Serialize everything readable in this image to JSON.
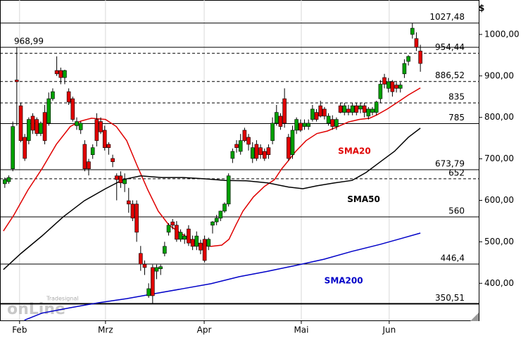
{
  "chart_data": {
    "type": "candlestick",
    "y_unit": "$",
    "xlim": [
      -1.2,
      118.6
    ],
    "xticks": [
      {
        "value": 3.7,
        "label": "Feb"
      },
      {
        "value": 25.2,
        "label": "Mrz"
      },
      {
        "value": 49.9,
        "label": "Apr"
      },
      {
        "value": 74.2,
        "label": "Mai"
      },
      {
        "value": 96.2,
        "label": "Jun"
      }
    ],
    "ylim": [
      310.5,
      1083
    ],
    "yticks": [
      {
        "value": 400,
        "label": "400,00"
      },
      {
        "value": 500,
        "label": "500,00"
      },
      {
        "value": 600,
        "label": "600,00"
      },
      {
        "value": 700,
        "label": "700,00"
      },
      {
        "value": 800,
        "label": "800,00"
      },
      {
        "value": 900,
        "label": "900,00"
      },
      {
        "value": 1000,
        "label": "1000,00"
      }
    ],
    "grid": "x",
    "up_color": "#00a000",
    "down_color": "#e00000",
    "open": [
      640,
      645,
      676,
      890,
      828,
      752,
      744,
      803,
      795,
      761,
      812,
      786,
      845,
      913,
      913,
      896,
      862,
      845,
      780,
      770,
      735,
      693,
      710,
      795,
      790,
      769,
      735,
      701,
      659,
      659,
      640,
      599,
      591,
      591,
      472,
      446,
      370,
      438,
      429,
      435,
      472,
      523,
      548,
      540,
      506,
      506,
      531,
      506,
      489,
      497,
      506,
      489,
      540,
      548,
      557,
      574,
      591,
      701,
      735,
      718,
      769,
      752,
      701,
      735,
      727,
      718,
      727,
      744,
      786,
      803,
      845,
      752,
      710,
      769,
      786,
      778,
      778,
      795,
      812,
      828,
      820,
      786,
      795,
      778,
      828,
      812,
      820,
      812,
      828,
      820,
      828,
      803,
      812,
      812,
      845,
      896,
      870,
      886,
      878,
      870,
      905,
      935,
      1000,
      990,
      960
    ],
    "high": [
      655,
      660,
      790,
      969,
      835,
      760,
      800,
      810,
      800,
      790,
      830,
      860,
      870,
      947,
      920,
      915,
      870,
      850,
      800,
      790,
      745,
      700,
      735,
      810,
      800,
      780,
      740,
      710,
      665,
      670,
      665,
      630,
      600,
      600,
      490,
      455,
      400,
      445,
      445,
      445,
      500,
      545,
      555,
      550,
      530,
      520,
      540,
      515,
      525,
      505,
      515,
      510,
      550,
      565,
      575,
      595,
      665,
      725,
      745,
      760,
      775,
      760,
      740,
      745,
      735,
      725,
      735,
      800,
      830,
      810,
      870,
      760,
      780,
      800,
      795,
      795,
      795,
      830,
      820,
      840,
      825,
      810,
      805,
      800,
      835,
      835,
      830,
      835,
      835,
      835,
      835,
      825,
      825,
      840,
      890,
      905,
      895,
      890,
      885,
      885,
      940,
      950,
      1027,
      1005,
      975
    ],
    "low": [
      630,
      640,
      670,
      780,
      740,
      695,
      735,
      760,
      755,
      755,
      735,
      780,
      840,
      900,
      880,
      880,
      830,
      790,
      770,
      760,
      670,
      660,
      700,
      730,
      760,
      720,
      710,
      680,
      600,
      630,
      620,
      570,
      550,
      500,
      430,
      420,
      365,
      350,
      410,
      420,
      465,
      515,
      530,
      500,
      500,
      495,
      490,
      480,
      480,
      470,
      450,
      480,
      520,
      540,
      550,
      570,
      585,
      690,
      715,
      710,
      740,
      720,
      690,
      695,
      700,
      695,
      700,
      735,
      780,
      770,
      775,
      695,
      700,
      760,
      765,
      770,
      770,
      790,
      790,
      800,
      795,
      780,
      770,
      770,
      810,
      805,
      805,
      805,
      805,
      810,
      800,
      795,
      805,
      805,
      835,
      870,
      860,
      850,
      860,
      860,
      895,
      925,
      990,
      960,
      910
    ],
    "close": [
      650,
      655,
      778,
      886,
      744,
      701,
      795,
      769,
      761,
      786,
      744,
      845,
      862,
      905,
      896,
      913,
      837,
      795,
      790,
      786,
      676,
      676,
      727,
      744,
      765,
      727,
      727,
      693,
      650,
      642,
      650,
      591,
      557,
      523,
      446,
      438,
      387,
      370,
      438,
      440,
      489,
      540,
      540,
      506,
      523,
      514,
      497,
      489,
      514,
      480,
      455,
      506,
      548,
      557,
      574,
      591,
      659,
      718,
      727,
      744,
      744,
      735,
      727,
      701,
      710,
      701,
      710,
      786,
      812,
      778,
      786,
      701,
      769,
      795,
      769,
      786,
      786,
      820,
      795,
      803,
      803,
      803,
      778,
      795,
      812,
      828,
      812,
      828,
      812,
      828,
      812,
      820,
      820,
      837,
      880,
      880,
      886,
      862,
      870,
      878,
      930,
      947,
      1015,
      969,
      930
    ],
    "series": [
      {
        "name": "SMA20",
        "color": "#e00000",
        "x": [
          -0.35,
          2.3,
          5.8,
          9.3,
          12.9,
          16.4,
          19.0,
          21.7,
          25.2,
          27.9,
          30.5,
          33.1,
          35.8,
          38.4,
          41.1,
          43.7,
          46.4,
          49.0,
          51.6,
          54.3,
          56.1,
          57.8,
          59.6,
          62.2,
          64.9,
          67.5,
          69.3,
          71.0,
          72.8,
          75.4,
          78.1,
          80.7,
          83.4,
          86.0,
          88.7,
          91.3,
          93.1,
          95.7,
          98.4,
          101.0,
          104.0
        ],
        "values": [
          526,
          565,
          625,
          676,
          735,
          778,
          791,
          798,
          795,
          778,
          744,
          684,
          625,
          574,
          540,
          523,
          506,
          494,
          489,
          492,
          506,
          540,
          574,
          608,
          633,
          650,
          676,
          696,
          718,
          744,
          761,
          767,
          778,
          789,
          795,
          798,
          806,
          820,
          837,
          854,
          871
        ]
      },
      {
        "name": "SMA50",
        "color": "#000000",
        "x": [
          -0.35,
          4.05,
          9.3,
          14.6,
          19.9,
          25.2,
          29.6,
          34.0,
          39.3,
          44.6,
          49.9,
          55.2,
          60.5,
          65.8,
          71.0,
          74.6,
          78.1,
          82.5,
          86.9,
          90.4,
          94.0,
          97.5,
          101.0,
          104.0
        ],
        "values": [
          433,
          472,
          514,
          560,
          599,
          628,
          650,
          659,
          655,
          655,
          652,
          648,
          647,
          642,
          632,
          628,
          635,
          642,
          648,
          667,
          693,
          718,
          752,
          774
        ]
      },
      {
        "name": "SMA200",
        "color": "#0000c8",
        "x": [
          4.9,
          9.3,
          16.4,
          23.4,
          30.5,
          37.5,
          44.6,
          51.6,
          58.7,
          65.8,
          72.8,
          79.9,
          86.9,
          94.0,
          99.2,
          104.0
        ],
        "values": [
          311,
          328,
          341,
          353,
          363,
          375,
          387,
          399,
          416,
          429,
          443,
          458,
          477,
          494,
          508,
          521
        ]
      }
    ],
    "levels": [
      {
        "value": 1027.48,
        "label": "1027,48",
        "style": "solid",
        "label_side": "right"
      },
      {
        "value": 968.99,
        "label": "968,99",
        "style": "solid",
        "label_side": "left"
      },
      {
        "value": 954.44,
        "label": "954,44",
        "style": "dashed",
        "label_side": "right"
      },
      {
        "value": 886.52,
        "label": "886,52",
        "style": "dashed",
        "label_side": "right"
      },
      {
        "value": 835,
        "label": "835",
        "style": "dashed",
        "label_side": "right"
      },
      {
        "value": 785,
        "label": "785",
        "style": "solid",
        "label_side": "right"
      },
      {
        "value": 673.79,
        "label": "673,79",
        "style": "solid",
        "label_side": "right"
      },
      {
        "value": 652,
        "label": "652",
        "style": "dashed",
        "label_side": "right"
      },
      {
        "value": 560,
        "label": "560",
        "style": "solid",
        "label_side": "right"
      },
      {
        "value": 446.4,
        "label": "446,4",
        "style": "solid",
        "label_side": "right"
      },
      {
        "value": 350.51,
        "label": "350,51",
        "style": "thick",
        "label_side": "right"
      }
    ],
    "annotations": [
      {
        "text": "SMA20",
        "x": 87.5,
        "y": 718,
        "color": "#e00000"
      },
      {
        "text": "SMA50",
        "x": 89.8,
        "y": 602,
        "color": "#000000"
      },
      {
        "text": "SMA200",
        "x": 84.8,
        "y": 406,
        "color": "#0000c8"
      }
    ],
    "watermark": [
      "Tradesignal",
      "onLine"
    ]
  }
}
